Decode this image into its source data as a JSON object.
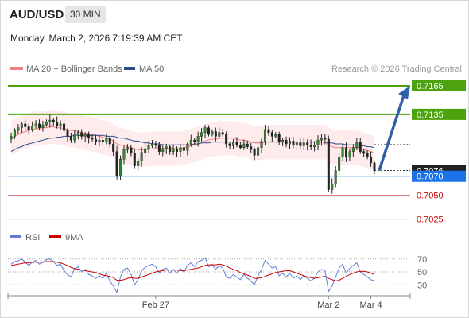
{
  "header": {
    "symbol": "AUD/USD",
    "timeframe": "30 MIN",
    "datetime": "Monday, March 2, 2026 7:19:39 AM CET"
  },
  "legend": {
    "ma20_label": "MA 20 + Bollinger Bands",
    "ma50_label": "MA 50",
    "ma20_color": "#f08080",
    "ma50_color": "#2b4c8c",
    "credit": "Research © 2026 Trading Central"
  },
  "rsi_legend": {
    "rsi_label": "RSI",
    "ma_label": "9MA",
    "rsi_color": "#5b7fd6",
    "ma_color": "#cc0000"
  },
  "colors": {
    "up": "#2e8b2e",
    "down": "#222222",
    "support_resistance_green": "#4ca30d",
    "current_blue": "#1a73e8",
    "level_red": "#cc0000",
    "arrow_blue": "#2f5fa8"
  },
  "chart_data": [
    {
      "type": "candlestick",
      "x_labels": [
        "Feb 27",
        "Mar 2",
        "Mar 4"
      ],
      "ylim": [
        0.7018,
        0.7175
      ],
      "price_levels": [
        {
          "value": 0.7165,
          "label": "0.7165",
          "kind": "resistance"
        },
        {
          "value": 0.7135,
          "label": "0.7135",
          "kind": "resistance"
        },
        {
          "value": 0.7076,
          "label": "0.7076",
          "kind": "last"
        },
        {
          "value": 0.707,
          "label": "0.7070",
          "kind": "pivot"
        },
        {
          "value": 0.705,
          "label": "0.7050",
          "kind": "support"
        },
        {
          "value": 0.7025,
          "label": "0.7025",
          "kind": "support"
        }
      ],
      "close": [
        0.7112,
        0.7118,
        0.7121,
        0.7125,
        0.7122,
        0.7119,
        0.7123,
        0.7125,
        0.7121,
        0.7124,
        0.7127,
        0.7129,
        0.7127,
        0.7123,
        0.7125,
        0.7118,
        0.7112,
        0.7108,
        0.7114,
        0.7116,
        0.7112,
        0.7114,
        0.711,
        0.7109,
        0.7106,
        0.7108,
        0.7106,
        0.711,
        0.7104,
        0.7096,
        0.707,
        0.7088,
        0.7098,
        0.71,
        0.7094,
        0.7081,
        0.7086,
        0.7095,
        0.7099,
        0.7102,
        0.7104,
        0.7103,
        0.7096,
        0.7099,
        0.7101,
        0.7096,
        0.7099,
        0.7096,
        0.71,
        0.7097,
        0.7104,
        0.7108,
        0.7106,
        0.7112,
        0.7116,
        0.7121,
        0.7114,
        0.7117,
        0.7112,
        0.7116,
        0.7114,
        0.7104,
        0.7102,
        0.7106,
        0.7103,
        0.71,
        0.7104,
        0.7101,
        0.7098,
        0.7092,
        0.71,
        0.7107,
        0.7119,
        0.7116,
        0.7112,
        0.7114,
        0.7106,
        0.7108,
        0.7104,
        0.7107,
        0.7103,
        0.7105,
        0.7102,
        0.7105,
        0.7103,
        0.7101,
        0.7103,
        0.7108,
        0.711,
        0.7109,
        0.7056,
        0.7062,
        0.7076,
        0.709,
        0.71,
        0.709,
        0.7096,
        0.71,
        0.7106,
        0.7096,
        0.7094,
        0.709,
        0.7084,
        0.7076
      ],
      "ma20": [
        0.711,
        0.7112,
        0.7114,
        0.7116,
        0.7117,
        0.7118,
        0.7119,
        0.712,
        0.712,
        0.7121,
        0.7121,
        0.7122,
        0.7122,
        0.7121,
        0.7121,
        0.712,
        0.7119,
        0.7118,
        0.7118,
        0.7117,
        0.7116,
        0.7115,
        0.7115,
        0.7114,
        0.7113,
        0.7112,
        0.7111,
        0.711,
        0.7109,
        0.7107,
        0.7104,
        0.7103,
        0.7102,
        0.7101,
        0.71,
        0.7099,
        0.7098,
        0.7098,
        0.7098,
        0.7098,
        0.7099,
        0.7099,
        0.7099,
        0.7099,
        0.7099,
        0.7099,
        0.7099,
        0.7099,
        0.7099,
        0.71,
        0.7101,
        0.7102,
        0.7103,
        0.7104,
        0.7105,
        0.7107,
        0.7108,
        0.7109,
        0.7109,
        0.711,
        0.711,
        0.711,
        0.711,
        0.711,
        0.7109,
        0.7108,
        0.7108,
        0.7107,
        0.7106,
        0.7105,
        0.7105,
        0.7105,
        0.7106,
        0.7106,
        0.7106,
        0.7106,
        0.7106,
        0.7106,
        0.7106,
        0.7106,
        0.7106,
        0.7106,
        0.7106,
        0.7106,
        0.7106,
        0.7106,
        0.7106,
        0.7106,
        0.7106,
        0.7106,
        0.7103,
        0.7101,
        0.71,
        0.71,
        0.71,
        0.71,
        0.71,
        0.71,
        0.71,
        0.7099,
        0.7098,
        0.7097,
        0.7096,
        0.7094
      ],
      "ma50": [
        0.7096,
        0.7098,
        0.71,
        0.7101,
        0.7103,
        0.7104,
        0.7105,
        0.7106,
        0.7107,
        0.7108,
        0.7109,
        0.711,
        0.711,
        0.7111,
        0.7111,
        0.7112,
        0.7112,
        0.7112,
        0.7113,
        0.7113,
        0.7113,
        0.7113,
        0.7113,
        0.7113,
        0.7113,
        0.7113,
        0.7113,
        0.7112,
        0.7112,
        0.7112,
        0.7111,
        0.711,
        0.711,
        0.7109,
        0.7108,
        0.7107,
        0.7107,
        0.7106,
        0.7105,
        0.7105,
        0.7104,
        0.7104,
        0.7104,
        0.7103,
        0.7103,
        0.7103,
        0.7103,
        0.7103,
        0.7103,
        0.7103,
        0.7103,
        0.7103,
        0.7104,
        0.7104,
        0.7105,
        0.7105,
        0.7105,
        0.7106,
        0.7106,
        0.7106,
        0.7106,
        0.7106,
        0.7106,
        0.7106,
        0.7106,
        0.7106,
        0.7106,
        0.7106,
        0.7106,
        0.7106,
        0.7106,
        0.7106,
        0.7106,
        0.7106,
        0.7106,
        0.7106,
        0.7106,
        0.7106,
        0.7106,
        0.7106,
        0.7106,
        0.7106,
        0.7106,
        0.7106,
        0.7106,
        0.7106,
        0.7106,
        0.7106,
        0.7106,
        0.7106,
        0.7105,
        0.7105,
        0.7104,
        0.7104,
        0.7104,
        0.7103,
        0.7103,
        0.7103,
        0.7103,
        0.7102,
        0.7102,
        0.7101,
        0.7101,
        0.71
      ],
      "bb_width": 0.0018,
      "forecast_target": 0.7165
    },
    {
      "type": "line",
      "name": "RSI",
      "ylim": [
        18,
        82
      ],
      "y_ticks": [
        70,
        50,
        30
      ],
      "rsi": [
        62,
        66,
        67,
        70,
        65,
        60,
        65,
        68,
        62,
        65,
        69,
        70,
        66,
        60,
        62,
        52,
        46,
        42,
        55,
        58,
        50,
        54,
        46,
        44,
        40,
        44,
        40,
        48,
        36,
        28,
        18,
        42,
        54,
        56,
        46,
        30,
        38,
        52,
        57,
        60,
        62,
        58,
        48,
        54,
        56,
        48,
        54,
        48,
        55,
        50,
        60,
        64,
        58,
        66,
        68,
        72,
        58,
        62,
        54,
        60,
        56,
        42,
        40,
        46,
        42,
        38,
        46,
        40,
        36,
        30,
        44,
        54,
        68,
        62,
        56,
        58,
        44,
        48,
        42,
        48,
        40,
        44,
        38,
        44,
        40,
        36,
        40,
        50,
        54,
        52,
        20,
        28,
        42,
        56,
        62,
        48,
        55,
        60,
        64,
        50,
        46,
        42,
        38,
        36
      ],
      "ma9": [
        60,
        61,
        62,
        63,
        64,
        64,
        65,
        65,
        65,
        65,
        66,
        66,
        66,
        65,
        64,
        62,
        60,
        57,
        55,
        54,
        53,
        52,
        51,
        50,
        49,
        47,
        45,
        44,
        43,
        41,
        37,
        37,
        38,
        40,
        41,
        40,
        40,
        42,
        44,
        46,
        48,
        50,
        51,
        52,
        53,
        53,
        53,
        53,
        52,
        52,
        53,
        54,
        55,
        56,
        58,
        60,
        61,
        61,
        61,
        62,
        61,
        59,
        56,
        54,
        52,
        49,
        47,
        45,
        43,
        40,
        40,
        41,
        43,
        45,
        47,
        49,
        50,
        51,
        52,
        52,
        50,
        48,
        46,
        44,
        42,
        41,
        40,
        41,
        42,
        43,
        40,
        38,
        36,
        37,
        40,
        43,
        46,
        48,
        50,
        51,
        51,
        50,
        48,
        46
      ]
    }
  ]
}
